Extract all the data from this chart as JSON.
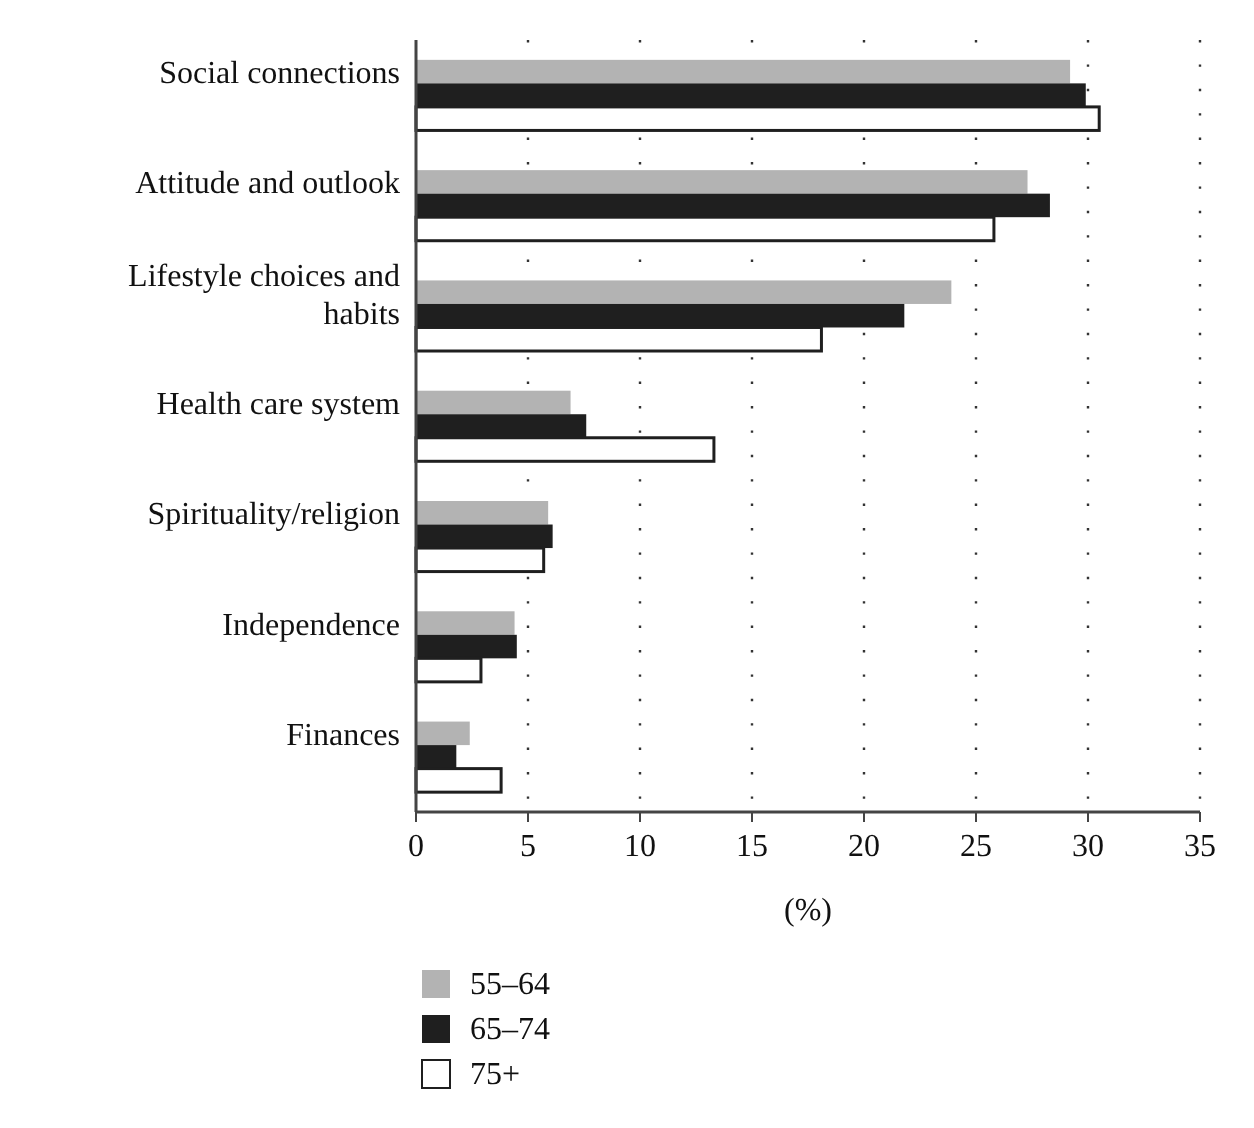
{
  "chart_data": {
    "type": "bar",
    "orientation": "horizontal",
    "xlabel": "(%)",
    "categories": [
      "Social connections",
      "Attitude and outlook",
      "Lifestyle choices and habits",
      "Health care system",
      "Spirituality/religion",
      "Independence",
      "Finances"
    ],
    "series": [
      {
        "name": "55–64",
        "color": "#b3b3b3",
        "values": [
          29.2,
          27.3,
          23.9,
          6.9,
          5.9,
          4.4,
          2.4
        ]
      },
      {
        "name": "65–74",
        "color": "#1f1f1f",
        "values": [
          29.9,
          28.3,
          21.8,
          7.6,
          6.1,
          4.5,
          1.8
        ]
      },
      {
        "name": "75+",
        "color": "#ffffff",
        "values": [
          30.5,
          25.8,
          18.1,
          13.3,
          5.7,
          2.9,
          3.8
        ]
      }
    ],
    "xlim": [
      0,
      35
    ],
    "xticks": [
      0,
      5,
      10,
      15,
      20,
      25,
      30,
      35
    ],
    "grid": "x",
    "legend": "bottom"
  }
}
